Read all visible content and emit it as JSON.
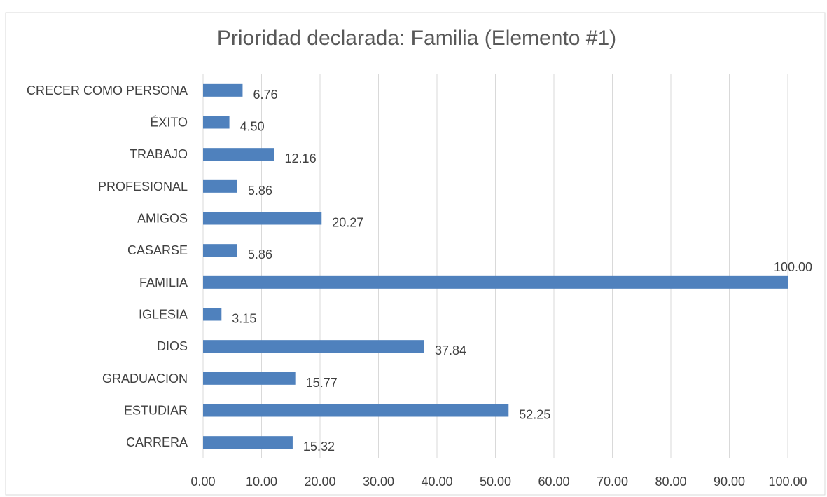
{
  "chart_data": {
    "type": "barh",
    "title": "Prioridad declarada: Familia (Elemento #1)",
    "categories": [
      "CRECER COMO PERSONA",
      "ÉXITO",
      "TRABAJO",
      "PROFESIONAL",
      "AMIGOS",
      "CASARSE",
      "FAMILIA",
      "IGLESIA",
      "DIOS",
      "GRADUACION",
      "ESTUDIAR",
      "CARRERA"
    ],
    "values": [
      6.76,
      4.5,
      12.16,
      5.86,
      20.27,
      5.86,
      100,
      3.15,
      37.84,
      15.77,
      52.25,
      15.32
    ],
    "value_labels": [
      "6.76",
      "4.50",
      "12.16",
      "5.86",
      "20.27",
      "5.86",
      "100.00",
      "3.15",
      "37.84",
      "15.77",
      "52.25",
      "15.32"
    ],
    "color": "#4f81bd",
    "xlim": [
      0,
      100
    ],
    "xticks": [
      {
        "value": 0,
        "label": "0.00"
      },
      {
        "value": 10,
        "label": "10.00"
      },
      {
        "value": 20,
        "label": "20.00"
      },
      {
        "value": 30,
        "label": "30.00"
      },
      {
        "value": 40,
        "label": "40.00"
      },
      {
        "value": 50,
        "label": "50.00"
      },
      {
        "value": 60,
        "label": "60.00"
      },
      {
        "value": 70,
        "label": "70.00"
      },
      {
        "value": 80,
        "label": "80.00"
      },
      {
        "value": 90,
        "label": "90.00"
      },
      {
        "value": 100,
        "label": "100.00"
      }
    ],
    "grid": true
  }
}
